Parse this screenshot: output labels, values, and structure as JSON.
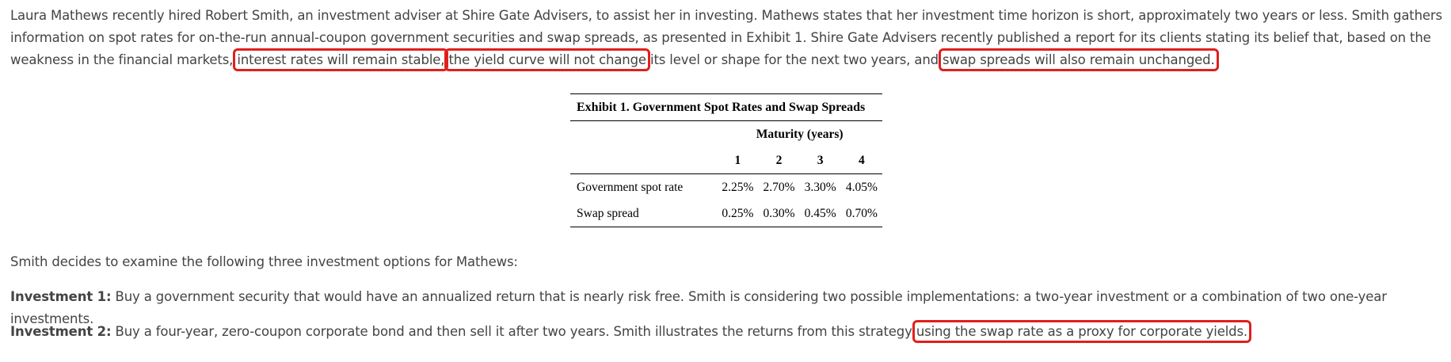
{
  "intro": {
    "part1": "Laura Mathews recently hired Robert Smith, an investment adviser at Shire Gate Advisers, to assist her in investing. Mathews states that her investment time horizon is short, approximately two years or less. Smith gathers information on spot rates for on-the-run annual-coupon government securities and swap spreads, as presented in Exhibit 1. Shire Gate Advisers recently published a report for its clients stating its belief that, based on the weakness in the financial markets, ",
    "highlight1": "interest rates will remain stable,",
    "part2": " ",
    "highlight2": "the yield curve will not change",
    "part3": " its level or shape for the next two years, and ",
    "highlight3": "swap spreads will also remain unchanged.",
    "part4": ""
  },
  "exhibit": {
    "title": "Exhibit 1. Government Spot Rates and Swap Spreads",
    "maturity_header": "Maturity (years)",
    "columns": [
      "1",
      "2",
      "3",
      "4"
    ],
    "rows": [
      {
        "label": "Government spot rate",
        "values": [
          "2.25%",
          "2.70%",
          "3.30%",
          "4.05%"
        ]
      },
      {
        "label": "Swap spread",
        "values": [
          "0.25%",
          "0.30%",
          "0.45%",
          "0.70%"
        ]
      }
    ]
  },
  "smith_text": "Smith decides to examine the following three investment options for Mathews:",
  "investment1": {
    "label": "Investment 1:",
    "text": " Buy a government security that would have an annualized return that is nearly risk free. Smith is considering two possible implementations: a two-year investment or a combination of two one-year investments."
  },
  "investment2": {
    "label": "Investment 2:",
    "text": " Buy a four-year, zero-coupon corporate bond and then sell it after two years. Smith illustrates the returns from this strategy ",
    "highlight": "using the swap rate as a proxy for corporate yields."
  },
  "colors": {
    "highlight_border": "#e0201b",
    "text": "#444444"
  }
}
